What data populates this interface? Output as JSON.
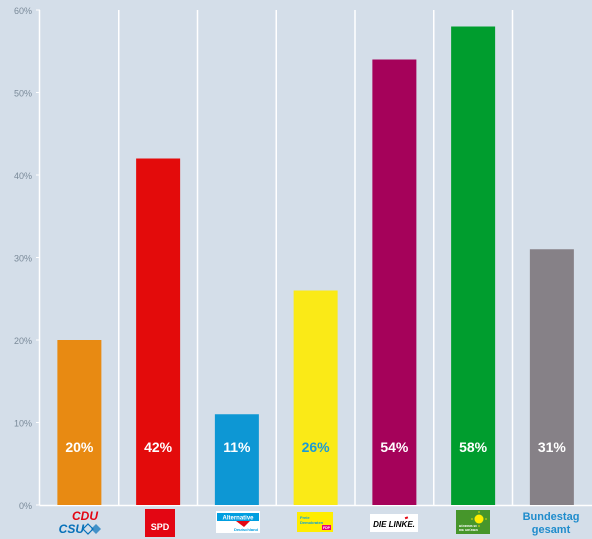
{
  "chart_data": {
    "type": "bar",
    "title": "",
    "xlabel": "",
    "ylabel": "",
    "ylim": [
      0,
      60
    ],
    "yticks": [
      0,
      10,
      20,
      30,
      40,
      50,
      60
    ],
    "ytick_labels": [
      "0%",
      "10%",
      "20%",
      "30%",
      "40%",
      "50%",
      "60%"
    ],
    "grid": "vertical separators between categories",
    "categories": [
      "CDU/CSU",
      "SPD",
      "AfD",
      "FDP",
      "DIE LINKE.",
      "Bündnis 90/Die Grünen",
      "Bundestag gesamt"
    ],
    "values": [
      20,
      42,
      11,
      26,
      54,
      58,
      31
    ],
    "value_labels": [
      "20%",
      "42%",
      "11%",
      "26%",
      "54%",
      "58%",
      "31%"
    ],
    "colors": [
      "#e88a12",
      "#e30b0b",
      "#0d97d4",
      "#faea17",
      "#a5025a",
      "#009d2e",
      "#868187"
    ],
    "label_colors": [
      "#ffffff",
      "#ffffff",
      "#ffffff",
      "#1a9bd7",
      "#ffffff",
      "#ffffff",
      "#ffffff"
    ]
  },
  "logos": {
    "cdu_csu": {
      "line1": "CDU",
      "line2": "CSU",
      "color1": "#e30613",
      "color2": "#0570b9"
    },
    "spd": {
      "text": "SPD",
      "bg": "#e30613"
    },
    "afd": {
      "line1": "Alternative",
      "line2": "Deutschland",
      "color": "#009ee0",
      "accent": "#e30613"
    },
    "fdp": {
      "line1": "Freie",
      "line2": "Demokraten",
      "tag": "FDP",
      "bg": "#ffed00",
      "text_color": "#009ee3",
      "tag_color": "#e5007d"
    },
    "linke": {
      "text": "DIE LINKE.",
      "color": "#000000",
      "accent": "#e30613"
    },
    "gruene": {
      "line1": "BÜNDNIS 90",
      "line2": "DIE GRÜNEN",
      "bg": "#46962b",
      "sun": "#ffee00"
    },
    "bundestag": {
      "line1": "Bundestag",
      "line2": "gesamt",
      "color": "#1f8ccc"
    }
  }
}
